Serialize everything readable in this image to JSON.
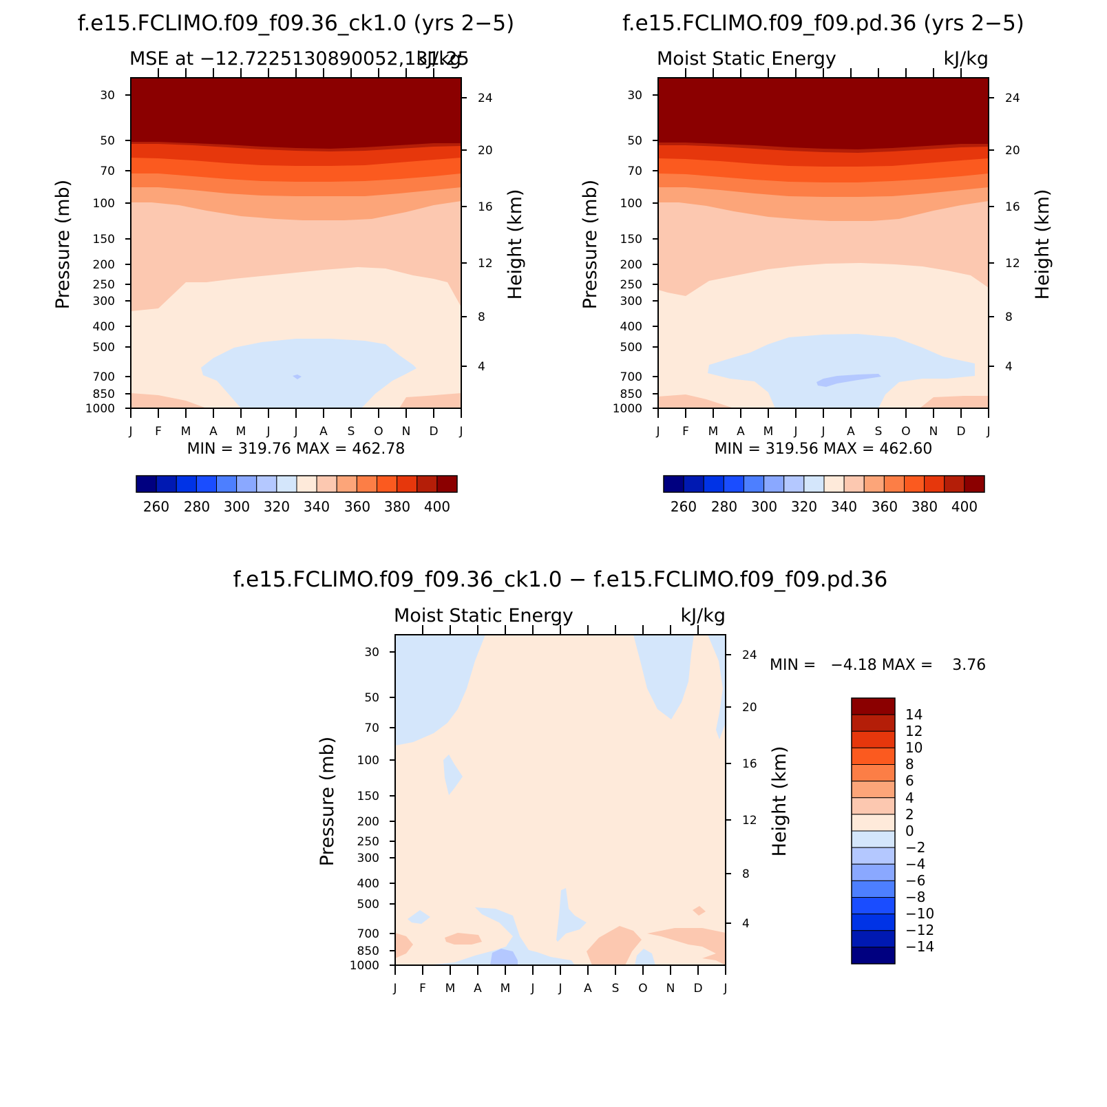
{
  "chart_data": [
    {
      "type": "contour",
      "title": "f.e15.FCLIMO.f09_f09.36_ck1.0 (yrs 2-5)",
      "subtitle_left": "MSE at -12.7225130890052,131.25",
      "subtitle_right": "kJ/kg",
      "xlabel": "",
      "ylabel": "Pressure (mb)",
      "y2label": "Height (km)",
      "x_ticks": [
        "J",
        "F",
        "M",
        "A",
        "M",
        "J",
        "J",
        "A",
        "S",
        "O",
        "N",
        "D",
        "J"
      ],
      "y_ticks": [
        30,
        50,
        70,
        100,
        150,
        200,
        250,
        300,
        400,
        500,
        700,
        850,
        1000
      ],
      "y2_ticks": [
        24,
        20,
        16,
        12,
        8,
        4
      ],
      "ylim": [
        1000,
        24
      ],
      "ylog": true,
      "stats_text": "MIN = 319.76 MAX = 462.78",
      "colorbar_labels": [
        "260",
        "280",
        "300",
        "320",
        "340",
        "360",
        "380",
        "400"
      ],
      "colorbar_colors": [
        "#000080",
        "#0019b2",
        "#0033e6",
        "#1a4dff",
        "#4d7fff",
        "#8aa8ff",
        "#b4c8ff",
        "#d4e6fb",
        "#feeada",
        "#fcc8b0",
        "#fca579",
        "#fc7e46",
        "#fb5a1f",
        "#e6370c",
        "#b41e08",
        "#8b0000"
      ]
    },
    {
      "type": "contour",
      "title": "f.e15.FCLIMO.f09_f09.pd.36 (yrs 2-5)",
      "subtitle_left": "Moist Static Energy",
      "subtitle_right": "kJ/kg",
      "xlabel": "",
      "ylabel": "Pressure (mb)",
      "y2label": "Height (km)",
      "x_ticks": [
        "J",
        "F",
        "M",
        "A",
        "M",
        "J",
        "J",
        "A",
        "S",
        "O",
        "N",
        "D",
        "J"
      ],
      "y_ticks": [
        30,
        50,
        70,
        100,
        150,
        200,
        250,
        300,
        400,
        500,
        700,
        850,
        1000
      ],
      "y2_ticks": [
        24,
        20,
        16,
        12,
        8,
        4
      ],
      "ylim": [
        1000,
        24
      ],
      "ylog": true,
      "stats_text": "MIN = 319.56 MAX = 462.60",
      "colorbar_labels": [
        "260",
        "280",
        "300",
        "320",
        "340",
        "360",
        "380",
        "400"
      ],
      "colorbar_colors": [
        "#000080",
        "#0019b2",
        "#0033e6",
        "#1a4dff",
        "#4d7fff",
        "#8aa8ff",
        "#b4c8ff",
        "#d4e6fb",
        "#feeada",
        "#fcc8b0",
        "#fca579",
        "#fc7e46",
        "#fb5a1f",
        "#e6370c",
        "#b41e08",
        "#8b0000"
      ]
    },
    {
      "type": "contour",
      "title": "f.e15.FCLIMO.f09_f09.36_ck1.0 - f.e15.FCLIMO.f09_f09.pd.36",
      "subtitle_left": "Moist Static Energy",
      "subtitle_right": "kJ/kg",
      "xlabel": "",
      "ylabel": "Pressure (mb)",
      "y2label": "Height (km)",
      "x_ticks": [
        "J",
        "F",
        "M",
        "A",
        "M",
        "J",
        "J",
        "A",
        "S",
        "O",
        "N",
        "D",
        "J"
      ],
      "y_ticks": [
        30,
        50,
        70,
        100,
        150,
        200,
        250,
        300,
        400,
        500,
        700,
        850,
        1000
      ],
      "y2_ticks": [
        24,
        20,
        16,
        12,
        8,
        4
      ],
      "ylim": [
        1000,
        24
      ],
      "ylog": true,
      "stats_text": "MIN =   -4.18 MAX =    3.76",
      "colorbar_labels": [
        "14",
        "12",
        "10",
        "8",
        "6",
        "4",
        "2",
        "0",
        "-2",
        "-4",
        "-6",
        "-8",
        "-10",
        "-12",
        "-14"
      ],
      "colorbar_colors": [
        "#8b0000",
        "#b41e08",
        "#e6370c",
        "#fb5a1f",
        "#fc7e46",
        "#fca579",
        "#fcc8b0",
        "#feeada",
        "#d4e6fb",
        "#b4c8ff",
        "#8aa8ff",
        "#4d7fff",
        "#1a4dff",
        "#0033e6",
        "#0019b2",
        "#000080"
      ]
    }
  ]
}
